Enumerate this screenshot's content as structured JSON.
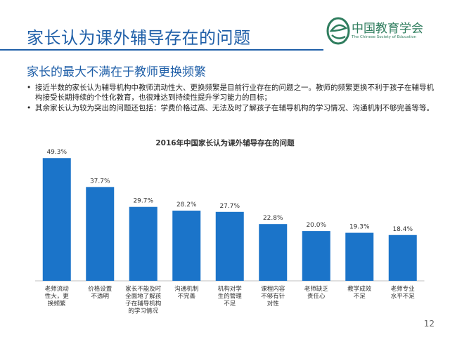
{
  "header": {
    "title": "家长认为课外辅导存在的问题",
    "logo_cn": "中国教育学会",
    "logo_en": "The Chinese Society of Education"
  },
  "subtitle": "家长的最大不满在于教师更换频繁",
  "bullets": [
    {
      "symbol": "•",
      "text": "接近半数的家长认为辅导机构中教师流动性大、更换频繁是目前行业存在的问题之一。教师的频繁更换不利于孩子在辅导机构接受长期持续的个性化教育，也很难达到持续性提升学习能力的目标；"
    },
    {
      "symbol": "•",
      "text": "其余家长认为较为突出的问题还包括：学费价格过高、无法及时了解孩子在辅导机构的学习情况、沟通机制不够完善等等。"
    }
  ],
  "page_number": "12",
  "colors": {
    "title": "#1f5fa8",
    "bar": "#1b74c9",
    "logo": "#2f7d5e"
  },
  "chart_data": {
    "type": "bar",
    "title": "2016年中国家长认为课外辅导存在的问题",
    "categories": [
      "老师流动性大，更换频繁",
      "价格设置不透明",
      "家长不能及时全面地了解孩子在辅导机构的学习情况",
      "沟通机制不完善",
      "机构对学生的管理不足",
      "课程内容不够有针对性",
      "老师缺乏责任心",
      "教学成效不足",
      "老师专业水平不足"
    ],
    "category_lines": [
      [
        "老师流动",
        "性大，更",
        "换频繁"
      ],
      [
        "价格设置",
        "不透明"
      ],
      [
        "家长不能及时",
        "全面地了解孩",
        "子在辅导机构",
        "的学习情况"
      ],
      [
        "沟通机制",
        "不完善"
      ],
      [
        "机构对学",
        "生的管理",
        "不足"
      ],
      [
        "课程内容",
        "不够有针",
        "对性"
      ],
      [
        "老师缺乏",
        "责任心"
      ],
      [
        "教学成效",
        "不足"
      ],
      [
        "老师专业",
        "水平不足"
      ]
    ],
    "values": [
      49.3,
      37.7,
      29.7,
      28.2,
      27.7,
      22.8,
      20.0,
      19.3,
      18.4
    ],
    "value_labels": [
      "49.3%",
      "37.7%",
      "29.7%",
      "28.2%",
      "27.7%",
      "22.8%",
      "20.0%",
      "19.3%",
      "18.4%"
    ],
    "ylim": [
      0,
      55
    ],
    "grid": false,
    "legend": "none"
  }
}
